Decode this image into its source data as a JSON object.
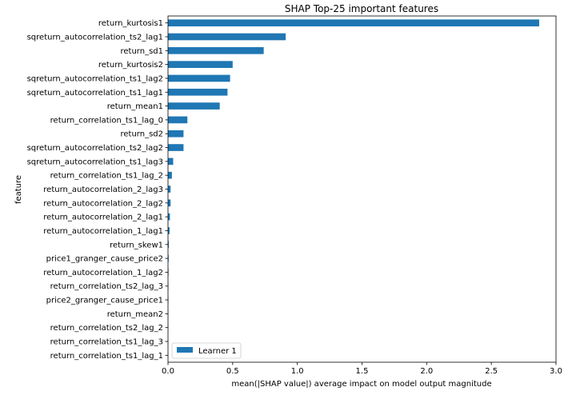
{
  "chart_data": {
    "type": "bar",
    "orientation": "horizontal",
    "title": "SHAP Top-25 important features",
    "xlabel": "mean(|SHAP value|) average impact on model output magnitude",
    "ylabel": "feature",
    "xlim": [
      0,
      3.0
    ],
    "xticks": [
      "0.0",
      "0.5",
      "1.0",
      "1.5",
      "2.0",
      "2.5",
      "3.0"
    ],
    "grid": false,
    "legend_position": "lower-left",
    "color": "#1f77b4",
    "categories": [
      "return_kurtosis1",
      "sqreturn_autocorrelation_ts2_lag1",
      "return_sd1",
      "return_kurtosis2",
      "sqreturn_autocorrelation_ts1_lag2",
      "sqreturn_autocorrelation_ts1_lag1",
      "return_mean1",
      "return_correlation_ts1_lag_0",
      "return_sd2",
      "sqreturn_autocorrelation_ts2_lag2",
      "sqreturn_autocorrelation_ts1_lag3",
      "return_correlation_ts1_lag_2",
      "return_autocorrelation_2_lag3",
      "return_autocorrelation_2_lag2",
      "return_autocorrelation_2_lag1",
      "return_autocorrelation_1_lag1",
      "return_skew1",
      "price1_granger_cause_price2",
      "return_autocorrelation_1_lag2",
      "return_correlation_ts2_lag_3",
      "price2_granger_cause_price1",
      "return_mean2",
      "return_correlation_ts2_lag_2",
      "return_correlation_ts1_lag_3",
      "return_correlation_ts1_lag_1"
    ],
    "series": [
      {
        "name": "Learner 1",
        "values": [
          2.87,
          0.91,
          0.74,
          0.5,
          0.48,
          0.46,
          0.4,
          0.15,
          0.12,
          0.12,
          0.04,
          0.03,
          0.02,
          0.02,
          0.015,
          0.012,
          0.006,
          0.005,
          0.004,
          0.003,
          0.003,
          0.002,
          0.002,
          0.001,
          0.001
        ]
      }
    ]
  }
}
